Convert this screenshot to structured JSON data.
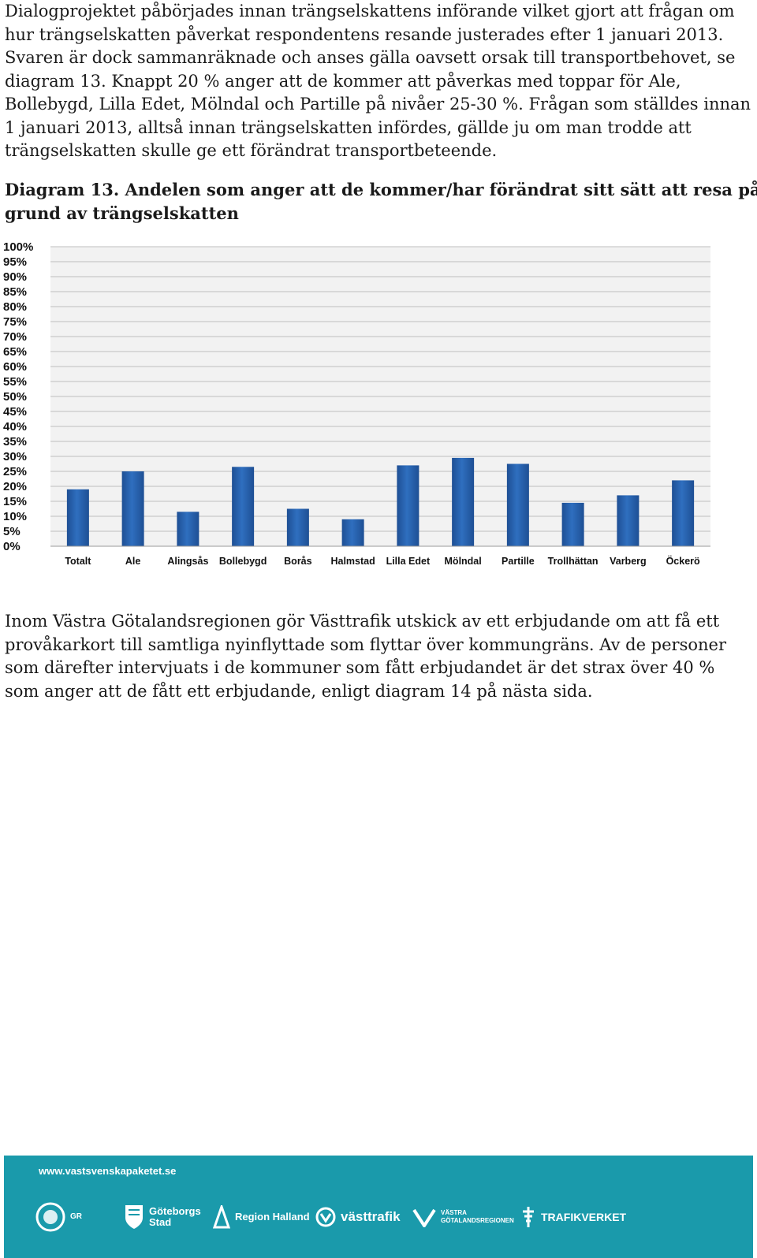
{
  "intro": {
    "lines": [
      "Dialogprojektet påbörjades innan trängselskattens införande vilket gjort att frågan om",
      "hur trängselskatten påverkat respondentens resande justerades efter 1 januari 2013.",
      "Svaren är dock sammanräknade och anses gälla oavsett orsak till transportbehovet, se",
      "diagram 13. Knappt 20 % anger att de kommer att påverkas med toppar för Ale,",
      "Bollebygd, Lilla Edet, Mölndal och Partille på nivåer 25-30 %. Frågan som ställdes innan",
      "1 januari 2013, alltså innan trängselskatten infördes, gällde ju om man trodde att",
      "trängselskatten skulle ge ett förändrat transportbeteende."
    ]
  },
  "caption": {
    "lines": [
      "Diagram 13. Andelen som anger att de kommer/har förändrat sitt sätt att resa på",
      "grund av trängselskatten"
    ]
  },
  "chart_data": {
    "type": "bar",
    "categories": [
      "Totalt",
      "Ale",
      "Alingsås",
      "Bollebygd",
      "Borås",
      "Halmstad",
      "Lilla Edet",
      "Mölndal",
      "Partille",
      "Trollhättan",
      "Varberg",
      "Öckerö"
    ],
    "values": [
      19,
      25,
      11.5,
      26.5,
      12.5,
      9,
      27,
      29.5,
      27.5,
      14.5,
      17,
      22
    ],
    "yticks": [
      "0%",
      "5%",
      "10%",
      "15%",
      "20%",
      "25%",
      "30%",
      "35%",
      "40%",
      "45%",
      "50%",
      "55%",
      "60%",
      "65%",
      "70%",
      "75%",
      "80%",
      "85%",
      "90%",
      "95%",
      "100%"
    ],
    "ylim": [
      0,
      100
    ],
    "grid": true,
    "colors": {
      "bar": "#2f6fbf",
      "bar_dark": "#1e4f94",
      "grid": "#bfbfbf",
      "plot_bg": "#f2f2f2"
    }
  },
  "after": {
    "lines": [
      "Inom Västra Götalandsregionen gör Västtrafik utskick av ett erbjudande om att få ett",
      "provåkarkort till samtliga nyinflyttade som flyttar över kommungräns. Av de personer",
      "som därefter intervjuats i de kommuner som fått erbjudandet är det strax över 40 %",
      "som anger att de fått ett erbjudande, enligt diagram 14 på nästa sida."
    ]
  },
  "footer": {
    "url": "www.vastsvenskapaketet.se",
    "bg_color": "#1a9aab",
    "logos": [
      {
        "icon": "gr-circle-logo",
        "text": [
          "GR"
        ]
      },
      {
        "icon": "goteborg-crest-logo",
        "text": [
          "Göteborgs",
          "Stad"
        ]
      },
      {
        "icon": "halland-logo",
        "text": [
          "Region Halland"
        ]
      },
      {
        "icon": "vasttrafik-logo",
        "text": [
          "västtrafik"
        ]
      },
      {
        "icon": "vgr-logo",
        "text": [
          "VÄSTRA",
          "GÖTALANDSREGIONEN"
        ]
      },
      {
        "icon": "trafikverket-logo",
        "text": [
          "TRAFIKVERKET"
        ]
      }
    ]
  }
}
